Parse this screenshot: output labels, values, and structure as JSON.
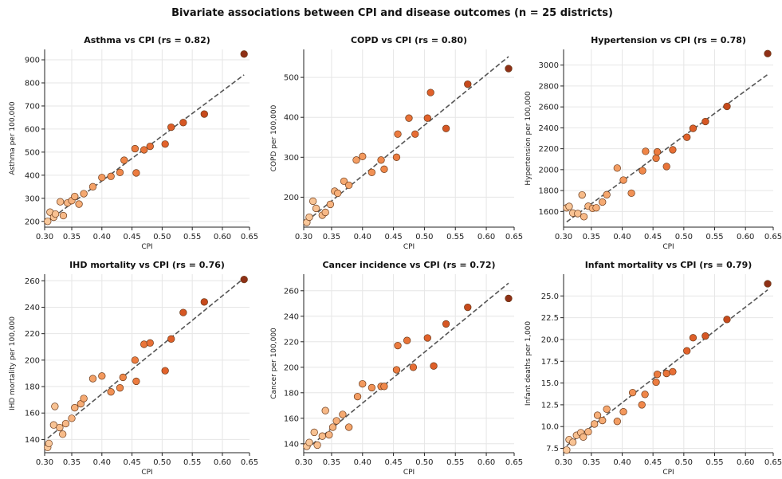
{
  "figure": {
    "title": "Bivariate associations between CPI and disease outcomes (n = 25 districts)"
  },
  "chart_data": [
    {
      "type": "scatter",
      "title": "Asthma vs CPI  (rs = 0.82)",
      "xlabel": "CPI",
      "ylabel": "Asthma per 100,000",
      "xlim": [
        0.305,
        0.645
      ],
      "ylim": [
        175,
        945
      ],
      "xticks": [
        0.3,
        0.35,
        0.4,
        0.45,
        0.5,
        0.55,
        0.6,
        0.65
      ],
      "xtick_labels": [
        "0.30",
        "0.35",
        "0.40",
        "0.45",
        "0.50",
        "0.55",
        "0.60",
        "0.65"
      ],
      "yticks": [
        200,
        300,
        400,
        500,
        600,
        700,
        800,
        900
      ],
      "ytick_labels": [
        "200",
        "300",
        "400",
        "500",
        "600",
        "700",
        "800",
        "900"
      ],
      "fit": [
        [
          0.31,
          200
        ],
        [
          0.636,
          835
        ]
      ],
      "points": [
        [
          0.31,
          200
        ],
        [
          0.314,
          240
        ],
        [
          0.32,
          218
        ],
        [
          0.323,
          232
        ],
        [
          0.331,
          285
        ],
        [
          0.336,
          225
        ],
        [
          0.343,
          280
        ],
        [
          0.35,
          290
        ],
        [
          0.355,
          308
        ],
        [
          0.362,
          275
        ],
        [
          0.37,
          320
        ],
        [
          0.385,
          350
        ],
        [
          0.4,
          390
        ],
        [
          0.415,
          395
        ],
        [
          0.43,
          412
        ],
        [
          0.437,
          465
        ],
        [
          0.455,
          515
        ],
        [
          0.457,
          410
        ],
        [
          0.47,
          510
        ],
        [
          0.48,
          525
        ],
        [
          0.505,
          535
        ],
        [
          0.515,
          608
        ],
        [
          0.535,
          628
        ],
        [
          0.57,
          665
        ],
        [
          0.636,
          925
        ]
      ],
      "grid": true
    },
    {
      "type": "scatter",
      "title": "COPD vs CPI  (rs = 0.80)",
      "xlabel": "CPI",
      "ylabel": "COPD per 100,000",
      "xlim": [
        0.305,
        0.645
      ],
      "ylim": [
        125,
        570
      ],
      "xticks": [
        0.3,
        0.35,
        0.4,
        0.45,
        0.5,
        0.55,
        0.6,
        0.65
      ],
      "xtick_labels": [
        "0.30",
        "0.35",
        "0.40",
        "0.45",
        "0.50",
        "0.55",
        "0.60",
        "0.65"
      ],
      "yticks": [
        200,
        300,
        400,
        500
      ],
      "ytick_labels": [
        "200",
        "300",
        "400",
        "500"
      ],
      "fit": [
        [
          0.31,
          140
        ],
        [
          0.636,
          552
        ]
      ],
      "points": [
        [
          0.31,
          137
        ],
        [
          0.314,
          150
        ],
        [
          0.32,
          190
        ],
        [
          0.325,
          172
        ],
        [
          0.335,
          155
        ],
        [
          0.34,
          162
        ],
        [
          0.348,
          182
        ],
        [
          0.355,
          215
        ],
        [
          0.36,
          210
        ],
        [
          0.37,
          240
        ],
        [
          0.378,
          230
        ],
        [
          0.39,
          293
        ],
        [
          0.4,
          302
        ],
        [
          0.415,
          262
        ],
        [
          0.43,
          293
        ],
        [
          0.435,
          270
        ],
        [
          0.455,
          300
        ],
        [
          0.457,
          358
        ],
        [
          0.475,
          398
        ],
        [
          0.485,
          358
        ],
        [
          0.505,
          398
        ],
        [
          0.51,
          462
        ],
        [
          0.535,
          372
        ],
        [
          0.57,
          483
        ],
        [
          0.636,
          522
        ]
      ],
      "grid": true
    },
    {
      "type": "scatter",
      "title": "Hypertension vs CPI  (rs = 0.78)",
      "xlabel": "CPI",
      "ylabel": "Hypertension per 100,000",
      "xlim": [
        0.305,
        0.645
      ],
      "ylim": [
        1450,
        3150
      ],
      "xticks": [
        0.3,
        0.35,
        0.4,
        0.45,
        0.5,
        0.55,
        0.6,
        0.65
      ],
      "xtick_labels": [
        "0.30",
        "0.35",
        "0.40",
        "0.45",
        "0.50",
        "0.55",
        "0.60",
        "0.65"
      ],
      "yticks": [
        1600,
        1800,
        2000,
        2200,
        2400,
        2600,
        2800,
        3000
      ],
      "ytick_labels": [
        "1600",
        "1800",
        "2000",
        "2200",
        "2400",
        "2600",
        "2800",
        "3000"
      ],
      "fit": [
        [
          0.31,
          1500
        ],
        [
          0.636,
          2910
        ]
      ],
      "points": [
        [
          0.31,
          1635
        ],
        [
          0.314,
          1648
        ],
        [
          0.32,
          1585
        ],
        [
          0.328,
          1580
        ],
        [
          0.335,
          1758
        ],
        [
          0.338,
          1550
        ],
        [
          0.345,
          1650
        ],
        [
          0.352,
          1630
        ],
        [
          0.358,
          1635
        ],
        [
          0.368,
          1690
        ],
        [
          0.375,
          1760
        ],
        [
          0.392,
          2015
        ],
        [
          0.402,
          1900
        ],
        [
          0.415,
          1775
        ],
        [
          0.433,
          1990
        ],
        [
          0.438,
          2175
        ],
        [
          0.455,
          2110
        ],
        [
          0.457,
          2170
        ],
        [
          0.472,
          2030
        ],
        [
          0.482,
          2190
        ],
        [
          0.505,
          2310
        ],
        [
          0.515,
          2395
        ],
        [
          0.535,
          2460
        ],
        [
          0.57,
          2605
        ],
        [
          0.636,
          3110
        ]
      ],
      "grid": true
    },
    {
      "type": "scatter",
      "title": "IHD mortality vs CPI  (rs = 0.76)",
      "xlabel": "CPI",
      "ylabel": "IHD mortality per 100,000",
      "xlim": [
        0.305,
        0.645
      ],
      "ylim": [
        130,
        265
      ],
      "xticks": [
        0.3,
        0.35,
        0.4,
        0.45,
        0.5,
        0.55,
        0.6,
        0.65
      ],
      "xtick_labels": [
        "0.30",
        "0.35",
        "0.40",
        "0.45",
        "0.50",
        "0.55",
        "0.60",
        "0.65"
      ],
      "yticks": [
        140,
        160,
        180,
        200,
        220,
        240,
        260
      ],
      "ytick_labels": [
        "140",
        "160",
        "180",
        "200",
        "220",
        "240",
        "260"
      ],
      "fit": [
        [
          0.31,
          141
        ],
        [
          0.636,
          262
        ]
      ],
      "points": [
        [
          0.31,
          134
        ],
        [
          0.312,
          137
        ],
        [
          0.32,
          151
        ],
        [
          0.322,
          165
        ],
        [
          0.33,
          149
        ],
        [
          0.335,
          144
        ],
        [
          0.34,
          152
        ],
        [
          0.35,
          156
        ],
        [
          0.355,
          164
        ],
        [
          0.365,
          167
        ],
        [
          0.37,
          171
        ],
        [
          0.385,
          186
        ],
        [
          0.4,
          188
        ],
        [
          0.415,
          176
        ],
        [
          0.43,
          179
        ],
        [
          0.435,
          187
        ],
        [
          0.455,
          200
        ],
        [
          0.457,
          184
        ],
        [
          0.47,
          212
        ],
        [
          0.48,
          213
        ],
        [
          0.505,
          192
        ],
        [
          0.515,
          216
        ],
        [
          0.535,
          236
        ],
        [
          0.57,
          244
        ],
        [
          0.636,
          261
        ]
      ],
      "grid": true
    },
    {
      "type": "scatter",
      "title": "Cancer incidence vs CPI  (rs = 0.72)",
      "xlabel": "CPI",
      "ylabel": "Cancer per 100,000",
      "xlim": [
        0.305,
        0.645
      ],
      "ylim": [
        133,
        273
      ],
      "xticks": [
        0.3,
        0.35,
        0.4,
        0.45,
        0.5,
        0.55,
        0.6,
        0.65
      ],
      "xtick_labels": [
        "0.30",
        "0.35",
        "0.40",
        "0.45",
        "0.50",
        "0.55",
        "0.60",
        "0.65"
      ],
      "yticks": [
        140,
        160,
        180,
        200,
        220,
        240,
        260
      ],
      "ytick_labels": [
        "140",
        "160",
        "180",
        "200",
        "220",
        "240",
        "260"
      ],
      "fit": [
        [
          0.31,
          136
        ],
        [
          0.636,
          266
        ]
      ],
      "points": [
        [
          0.31,
          138
        ],
        [
          0.314,
          141
        ],
        [
          0.322,
          149
        ],
        [
          0.327,
          139
        ],
        [
          0.335,
          146
        ],
        [
          0.34,
          166
        ],
        [
          0.346,
          147
        ],
        [
          0.352,
          153
        ],
        [
          0.358,
          158
        ],
        [
          0.368,
          163
        ],
        [
          0.378,
          153
        ],
        [
          0.392,
          177
        ],
        [
          0.4,
          187
        ],
        [
          0.415,
          184
        ],
        [
          0.43,
          185
        ],
        [
          0.435,
          185
        ],
        [
          0.455,
          198
        ],
        [
          0.457,
          217
        ],
        [
          0.472,
          221
        ],
        [
          0.482,
          200
        ],
        [
          0.505,
          223
        ],
        [
          0.515,
          201
        ],
        [
          0.535,
          234
        ],
        [
          0.57,
          247
        ],
        [
          0.636,
          254
        ]
      ],
      "grid": true
    },
    {
      "type": "scatter",
      "title": "Infant mortality vs CPI  (rs = 0.79)",
      "xlabel": "CPI",
      "ylabel": "Infant deaths per 1,000",
      "xlim": [
        0.305,
        0.645
      ],
      "ylim": [
        7.0,
        27.5
      ],
      "xticks": [
        0.3,
        0.35,
        0.4,
        0.45,
        0.5,
        0.55,
        0.6,
        0.65
      ],
      "xtick_labels": [
        "0.30",
        "0.35",
        "0.40",
        "0.45",
        "0.50",
        "0.55",
        "0.60",
        "0.65"
      ],
      "yticks": [
        7.5,
        10.0,
        12.5,
        15.0,
        17.5,
        20.0,
        22.5,
        25.0
      ],
      "ytick_labels": [
        "7.5",
        "10.0",
        "12.5",
        "15.0",
        "17.5",
        "20.0",
        "22.5",
        "25.0"
      ],
      "fit": [
        [
          0.31,
          7.8
        ],
        [
          0.636,
          25.7
        ]
      ],
      "points": [
        [
          0.31,
          7.3
        ],
        [
          0.314,
          8.5
        ],
        [
          0.32,
          8.2
        ],
        [
          0.326,
          9.0
        ],
        [
          0.333,
          9.3
        ],
        [
          0.337,
          8.8
        ],
        [
          0.345,
          9.4
        ],
        [
          0.355,
          10.3
        ],
        [
          0.36,
          11.3
        ],
        [
          0.368,
          10.7
        ],
        [
          0.375,
          12.0
        ],
        [
          0.392,
          10.6
        ],
        [
          0.402,
          11.7
        ],
        [
          0.417,
          13.9
        ],
        [
          0.432,
          12.5
        ],
        [
          0.437,
          13.7
        ],
        [
          0.455,
          15.1
        ],
        [
          0.457,
          16.0
        ],
        [
          0.472,
          16.1
        ],
        [
          0.482,
          16.3
        ],
        [
          0.505,
          18.7
        ],
        [
          0.515,
          20.2
        ],
        [
          0.535,
          20.4
        ],
        [
          0.57,
          22.3
        ],
        [
          0.636,
          26.4
        ]
      ],
      "grid": true
    }
  ]
}
